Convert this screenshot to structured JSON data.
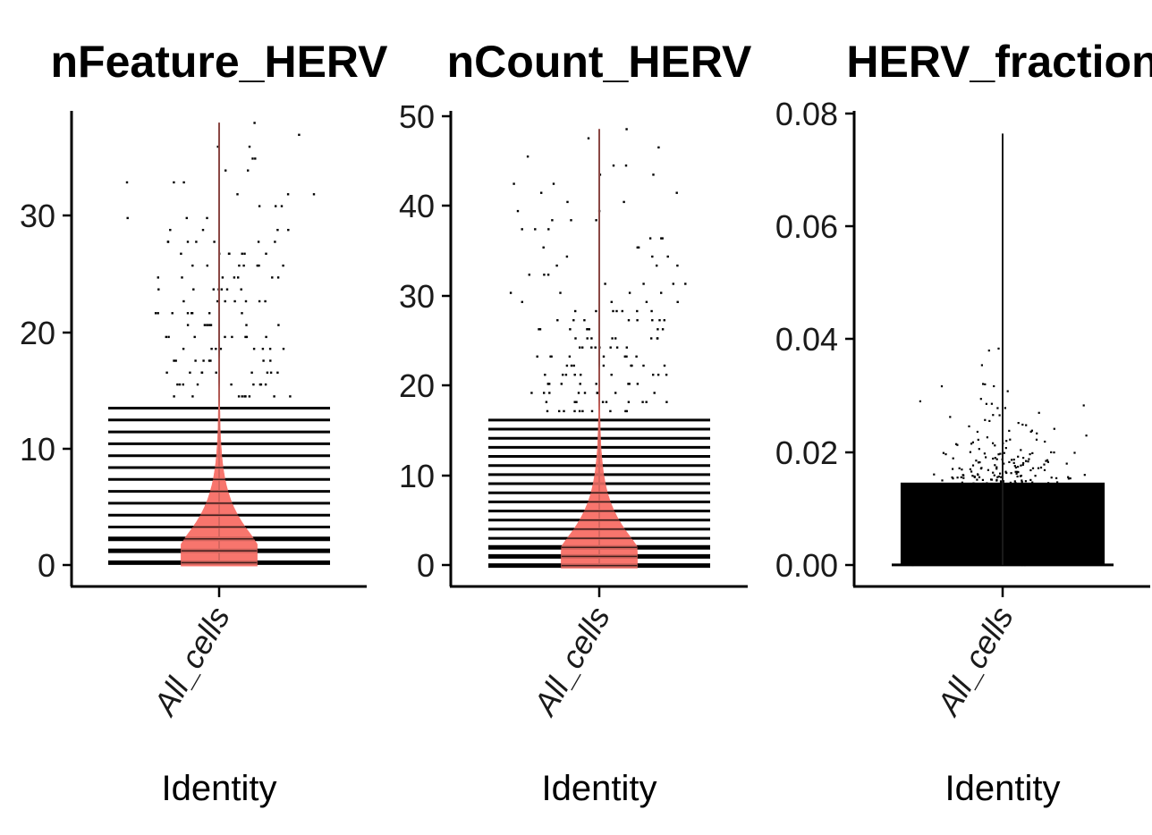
{
  "chart_data": [
    {
      "type": "violin",
      "title": "nFeature_HERV",
      "xlabel": "Identity",
      "ylabel": "",
      "categories": [
        "All_cells"
      ],
      "ylim": [
        -2,
        38
      ],
      "yticks": [
        0,
        10,
        20,
        30
      ],
      "ytick_labels": [
        "0",
        "10",
        "20",
        "30"
      ],
      "max_value": 37,
      "value_type": "integer",
      "violin_fill": "#F8766D",
      "grid": false,
      "legend": "none"
    },
    {
      "type": "violin",
      "title": "nCount_HERV",
      "xlabel": "Identity",
      "ylabel": "",
      "categories": [
        "All_cells"
      ],
      "ylim": [
        -2.3,
        50
      ],
      "yticks": [
        0,
        10,
        20,
        30,
        40,
        50
      ],
      "ytick_labels": [
        "0",
        "10",
        "20",
        "30",
        "40",
        "50"
      ],
      "max_value": 48,
      "value_type": "integer",
      "violin_fill": "#F8766D",
      "grid": false,
      "legend": "none"
    },
    {
      "type": "violin",
      "title": "HERV_fraction",
      "xlabel": "Identity",
      "ylabel": "",
      "categories": [
        "All_cells"
      ],
      "ylim": [
        -0.0038,
        0.08
      ],
      "yticks": [
        0,
        0.02,
        0.04,
        0.06,
        0.08
      ],
      "ytick_labels": [
        "0.00",
        "0.02",
        "0.04",
        "0.06",
        "0.08"
      ],
      "max_value": 0.076,
      "value_type": "continuous",
      "violin_fill": "#F8766D",
      "grid": false,
      "legend": "none"
    }
  ]
}
